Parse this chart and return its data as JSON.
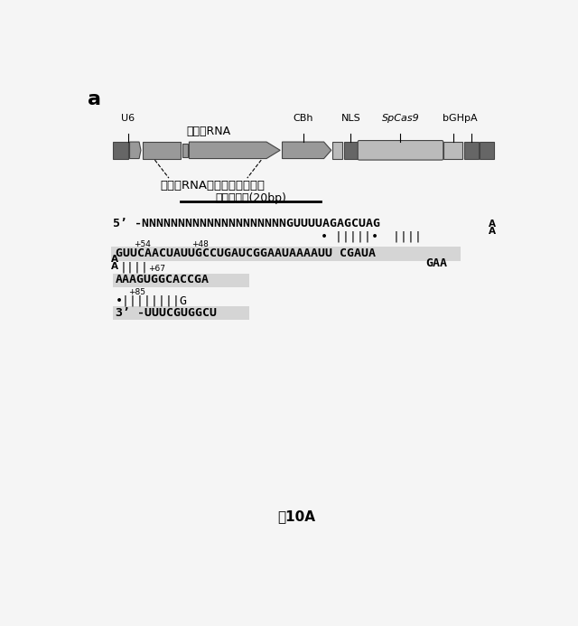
{
  "title_letter": "a",
  "figure_caption": "围10A",
  "background_color": "#f5f5f5",
  "label_u6": "U6",
  "label_cbh": "CBh",
  "label_nls": "NLS",
  "label_spcas9": "SpCas9",
  "label_bgh": "bGH",
  "label_pa": "pA",
  "label_chimera_rna": "キメラRNA",
  "label_architecture": "キメラRNAアーキテクチャー",
  "label_guide": "ガイド配列(20bp)",
  "seq_line1": "5’ -NNNNNNNNNNNNNNNNNNNNGUUUUAGAGCUAG",
  "seq_line2_dots": "• ||||||•  ||||",
  "seq_line3_label54": "+54",
  "seq_line3_label48": "+48",
  "seq_line3": "GUUCAACUAUUGCCUGAUCGGAAUAAAAUU CGAUA",
  "seq_line4_bars": "||||",
  "seq_line4_label67": "+67",
  "seq_line4_right": "GAA",
  "seq_line5": "AAAGUGGCACCGA",
  "seq_line6_dots": "•||||||||G",
  "seq_line6_label85": "+85",
  "seq_line7": "3’ -UUUCGUGGCU"
}
